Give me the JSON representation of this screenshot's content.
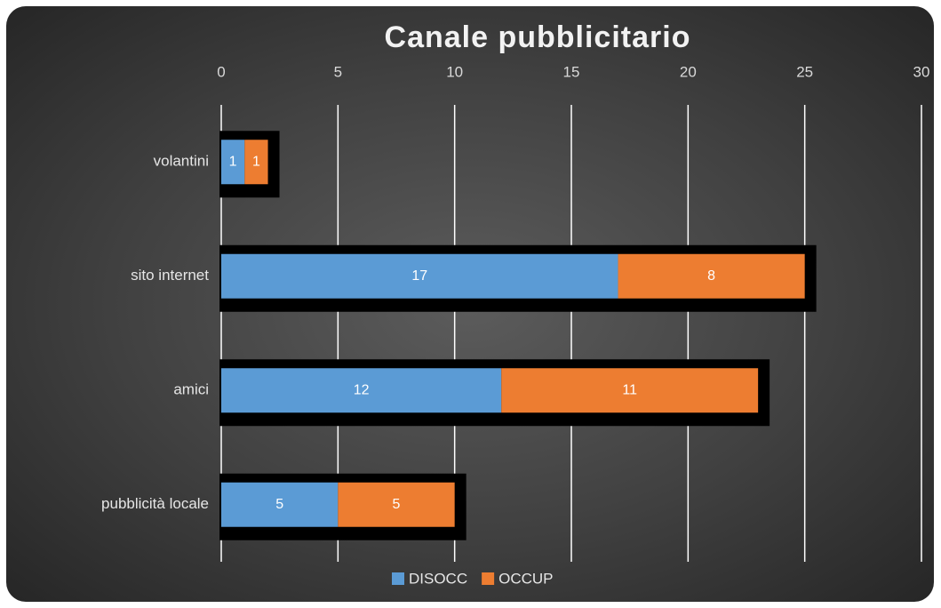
{
  "chart_data": {
    "type": "bar",
    "orientation": "horizontal",
    "stacked": true,
    "title": "Canale pubblicitario",
    "categories": [
      "volantini",
      "sito internet",
      "amici",
      "pubblicità locale"
    ],
    "series": [
      {
        "name": "DISOCC",
        "color": "#5b9bd5",
        "values": [
          1,
          17,
          12,
          5
        ]
      },
      {
        "name": "OCCUP",
        "color": "#ed7d31",
        "values": [
          1,
          8,
          11,
          5
        ]
      }
    ],
    "xlim": [
      0,
      30
    ],
    "xticks": [
      0,
      5,
      10,
      15,
      20,
      25,
      30
    ],
    "grid": true,
    "legend": "bottom"
  }
}
